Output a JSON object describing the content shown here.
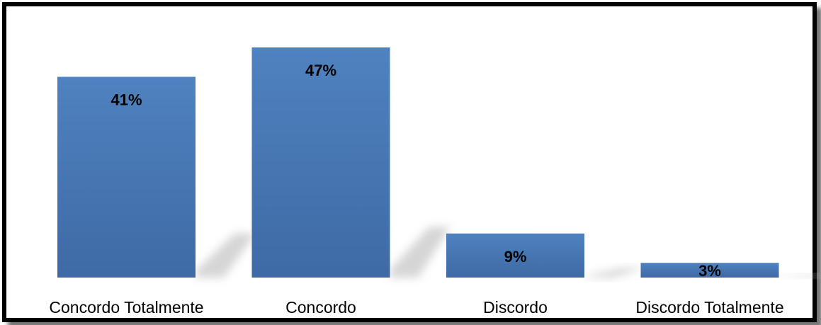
{
  "chart_data": {
    "type": "bar",
    "title": "",
    "xlabel": "",
    "ylabel": "",
    "categories": [
      "Concordo Totalmente",
      "Concordo",
      "Discordo",
      "Discordo Totalmente"
    ],
    "values": [
      41,
      47,
      9,
      3
    ],
    "value_labels": [
      "41%",
      "47%",
      "9%",
      "3%"
    ],
    "ylim": [
      0,
      50
    ],
    "grid": false,
    "legend": "none",
    "bar_color": "#4a7ebb",
    "bar_color_dark": "#3d6ba3"
  }
}
